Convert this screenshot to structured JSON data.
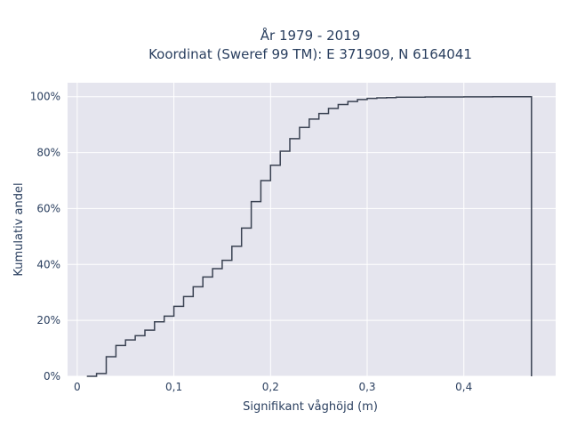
{
  "chart_data": {
    "type": "line",
    "title": "År 1979 - 2019",
    "subtitle": "Koordinat (Sweref 99 TM): E 371909, N 6164041",
    "xlabel": "Signifikant våghöjd (m)",
    "ylabel": "Kumulativ andel",
    "xlim": [
      -0.01,
      0.495
    ],
    "ylim": [
      0,
      1.05
    ],
    "x_ticks": [
      0,
      0.1,
      0.2,
      0.3,
      0.4
    ],
    "x_tick_labels": [
      "0",
      "0,1",
      "0,2",
      "0,3",
      "0,4"
    ],
    "y_ticks": [
      0,
      0.2,
      0.4,
      0.6,
      0.8,
      1.0
    ],
    "y_tick_labels": [
      "0%",
      "20%",
      "40%",
      "60%",
      "80%",
      "100%"
    ],
    "grid": true,
    "line_color": "#3a4252",
    "plot_background": "#e5e5ee",
    "series": [
      {
        "step": "post",
        "x": [
          0.01,
          0.02,
          0.03,
          0.04,
          0.05,
          0.06,
          0.07,
          0.08,
          0.09,
          0.1,
          0.11,
          0.12,
          0.13,
          0.14,
          0.15,
          0.16,
          0.17,
          0.18,
          0.19,
          0.2,
          0.21,
          0.22,
          0.23,
          0.24,
          0.25,
          0.26,
          0.27,
          0.28,
          0.29,
          0.3,
          0.31,
          0.32,
          0.33,
          0.34,
          0.36,
          0.38,
          0.4,
          0.43,
          0.45,
          0.47
        ],
        "y": [
          0.0,
          0.01,
          0.07,
          0.11,
          0.13,
          0.145,
          0.165,
          0.195,
          0.215,
          0.25,
          0.285,
          0.32,
          0.355,
          0.385,
          0.415,
          0.465,
          0.53,
          0.625,
          0.7,
          0.755,
          0.805,
          0.85,
          0.89,
          0.92,
          0.94,
          0.958,
          0.972,
          0.983,
          0.99,
          0.994,
          0.996,
          0.997,
          0.998,
          0.998,
          0.999,
          0.999,
          0.9995,
          0.9998,
          0.9999,
          0.0
        ]
      }
    ]
  }
}
